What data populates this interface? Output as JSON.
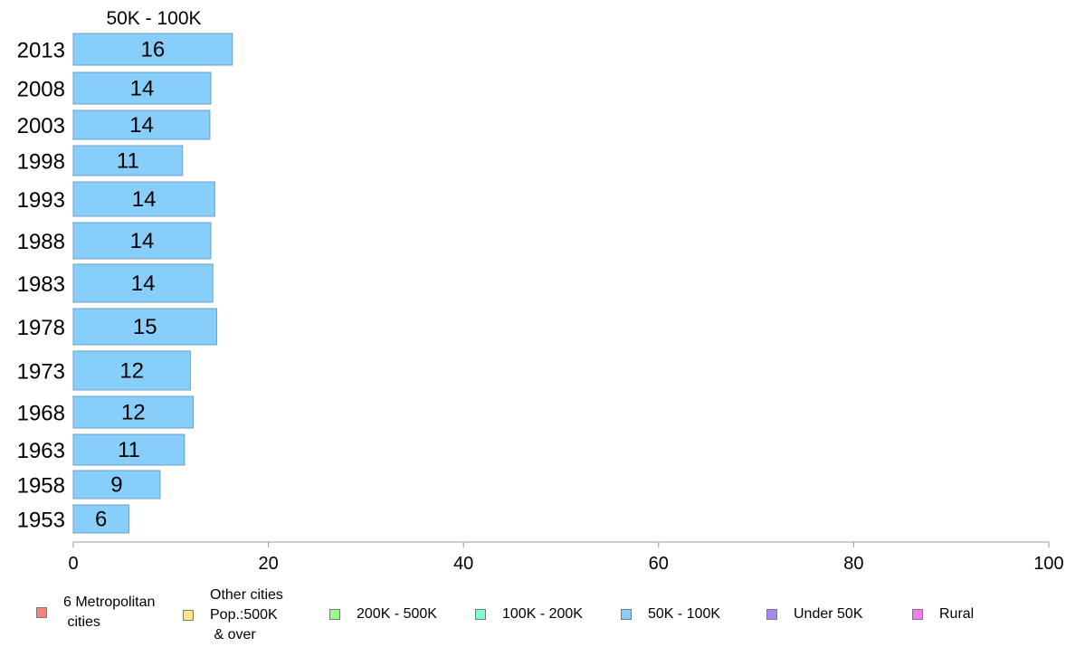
{
  "chart_data": {
    "type": "bar",
    "orientation": "horizontal",
    "title": "50K - 100K",
    "categories": [
      "2013",
      "2008",
      "2003",
      "1998",
      "1993",
      "1988",
      "1983",
      "1978",
      "1973",
      "1968",
      "1963",
      "1958",
      "1953"
    ],
    "values": [
      16.3,
      14.1,
      14.0,
      11.2,
      14.5,
      14.1,
      14.3,
      14.7,
      12.0,
      12.3,
      11.4,
      8.9,
      5.7
    ],
    "data_labels": [
      "16",
      "14",
      "14",
      "11",
      "14",
      "14",
      "14",
      "15",
      "12",
      "12",
      "11",
      "9",
      "6"
    ],
    "xlim": [
      0,
      100
    ],
    "xticks": [
      "0",
      "20",
      "40",
      "60",
      "80",
      "100"
    ],
    "xlabel": "",
    "ylabel": "",
    "grid": false,
    "bar_color": "#87cefa",
    "legend_position": "bottom",
    "legend": [
      {
        "label": "6 Metropolitan\n cities",
        "color": "#f4837d"
      },
      {
        "label": "Other cities\nPop.:500K\n & over",
        "color": "#fde47f"
      },
      {
        "label": "200K - 500K",
        "color": "#9dfb8b"
      },
      {
        "label": "100K - 200K",
        "color": "#7dfbca"
      },
      {
        "label": "50K - 100K",
        "color": "#87cefa"
      },
      {
        "label": "Under 50K",
        "color": "#a786f5"
      },
      {
        "label": "Rural",
        "color": "#f47ef0"
      }
    ]
  }
}
